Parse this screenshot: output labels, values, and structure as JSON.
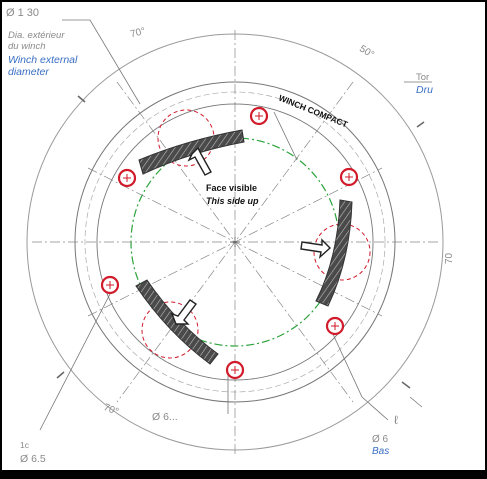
{
  "labels": {
    "diameter_top": "Ø 1 30",
    "diameter_top_fr_1": "Dia. extérieur",
    "diameter_top_fr_2": "du winch",
    "winch_external_1": "Winch external",
    "winch_external_2": "diameter",
    "angle_top_left": "70°",
    "angle_top_right": "50°",
    "angle_right": "70",
    "angle_bottom_left": "70°",
    "right_top_1": "Tor",
    "right_top_2": "Dru",
    "winch_compact": "WINCH COMPACT",
    "face_visible": "Face visible",
    "this_side_up": "This side up",
    "diameter_bottom": "Ø 6...",
    "bottom_left_1": "1c",
    "bottom_left_2": "Ø 6.5",
    "bottom_right_1": "Ø 6",
    "bottom_right_2": "Bas",
    "right_mark": "ℓ"
  },
  "colors": {
    "line": "#9a9a9a",
    "dark_line": "#555555",
    "red": "#d11a2a",
    "green": "#2aa33a",
    "blue": "#3a6fc4",
    "plate": "#555555"
  }
}
